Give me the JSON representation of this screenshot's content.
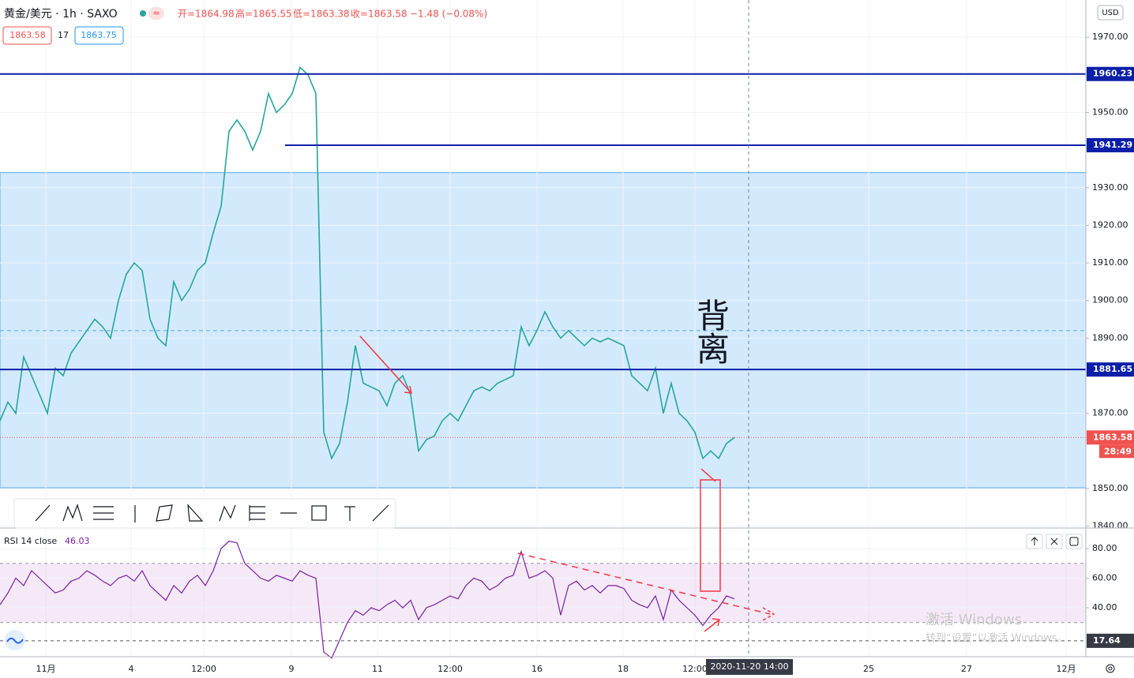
{
  "header": {
    "symbol": "黄金/美元 · 1h · SAXO",
    "ohlc": [
      "开=1864.98",
      "高=1865.55",
      "低=1863.38",
      "收=1863.58"
    ],
    "change": "−1.48 (−0.08%)",
    "bid": "1863.58",
    "spread": "17",
    "ask": "1863.75",
    "currency": "USD"
  },
  "annotation": "背离",
  "crosshair_time": "2020-11-20  14:00",
  "countdown": "28:49",
  "watermark": [
    "激活 Windows",
    "转到“设置”以激活 Windows。"
  ],
  "chart_data": [
    {
      "type": "line",
      "title": "黄金/美元",
      "color": "#26a69a",
      "series": [
        {
          "name": "黄金/美元",
          "color": "#26a69a",
          "values": [
            1868,
            1873,
            1870,
            1885,
            1880,
            1875,
            1870,
            1882,
            1880,
            1886,
            1889,
            1892,
            1895,
            1893,
            1890,
            1900,
            1907,
            1910,
            1908,
            1895,
            1890,
            1888,
            1905,
            1900,
            1903,
            1908,
            1910,
            1918,
            1925,
            1945,
            1948,
            1945,
            1940,
            1945,
            1955,
            1950,
            1952,
            1955,
            1962,
            1960,
            1955,
            1865,
            1858,
            1862,
            1873,
            1888,
            1878,
            1877,
            1876,
            1872,
            1878,
            1880,
            1875,
            1860,
            1863,
            1864,
            1868,
            1870,
            1868,
            1872,
            1876,
            1877,
            1876,
            1878,
            1879,
            1880,
            1893,
            1888,
            1892,
            1897,
            1893,
            1890,
            1892,
            1890,
            1888,
            1890,
            1889,
            1890,
            1889,
            1888,
            1880,
            1878,
            1876,
            1882,
            1870,
            1878,
            1870,
            1868,
            1865,
            1858,
            1860,
            1858,
            1862,
            1863.58
          ]
        }
      ],
      "levels": [
        {
          "value": 1960.23,
          "color": "#0b1fa8"
        },
        {
          "value": 1941.29,
          "color": "#0b1fa8"
        },
        {
          "value": 1881.65,
          "color": "#0b1fa8"
        },
        {
          "value": 1863.58,
          "color": "#ef5350"
        }
      ],
      "zone": [
        1850.2,
        1934
      ],
      "dashed_level": 1892,
      "xlim": [
        0,
        137.5
      ],
      "xticks": [
        {
          "value": 5.8,
          "label": "11月"
        },
        {
          "value": 16.6,
          "label": "4"
        },
        {
          "value": 25.8,
          "label": "12:00"
        },
        {
          "value": 36.9,
          "label": "9"
        },
        {
          "value": 47.8,
          "label": "11"
        },
        {
          "value": 57,
          "label": "12:00"
        },
        {
          "value": 68,
          "label": "16"
        },
        {
          "value": 78.9,
          "label": "18"
        },
        {
          "value": 88,
          "label": "12:00"
        },
        {
          "value": 110,
          "label": "25"
        },
        {
          "value": 122.4,
          "label": "27"
        },
        {
          "value": 135,
          "label": "12月"
        }
      ],
      "ylim": [
        1839.5,
        1979.9
      ],
      "yticks": [
        {
          "value": 1840,
          "label": "1840.00"
        },
        {
          "value": 1850,
          "label": "1850.00"
        },
        {
          "value": 1870,
          "label": "1870.00"
        },
        {
          "value": 1890,
          "label": "1890.00"
        },
        {
          "value": 1900,
          "label": "1900.00"
        },
        {
          "value": 1910,
          "label": "1910.00"
        },
        {
          "value": 1920,
          "label": "1920.00"
        },
        {
          "value": 1930,
          "label": "1930.00"
        },
        {
          "value": 1950,
          "label": "1950.00"
        },
        {
          "value": 1970,
          "label": "1970.00"
        }
      ],
      "grid": true
    },
    {
      "type": "line",
      "title": "RSI 14 close",
      "last": 46.03,
      "color": "#7b1fa2",
      "band": [
        30,
        70
      ],
      "marker": 17.64,
      "series": [
        {
          "name": "RSI 14 close",
          "color": "#7b1fa2",
          "values": [
            42,
            50,
            60,
            55,
            65,
            60,
            55,
            50,
            52,
            58,
            60,
            65,
            62,
            58,
            55,
            60,
            62,
            58,
            65,
            55,
            50,
            45,
            55,
            50,
            58,
            62,
            55,
            65,
            80,
            85,
            84,
            70,
            65,
            60,
            58,
            62,
            60,
            58,
            65,
            62,
            60,
            10,
            6,
            18,
            30,
            38,
            35,
            40,
            38,
            42,
            45,
            40,
            45,
            32,
            40,
            42,
            45,
            48,
            46,
            55,
            60,
            58,
            52,
            55,
            60,
            62,
            78,
            60,
            62,
            65,
            60,
            35,
            55,
            58,
            52,
            55,
            50,
            55,
            55,
            53,
            45,
            42,
            40,
            48,
            32,
            52,
            45,
            40,
            35,
            28,
            35,
            40,
            48,
            46.03
          ]
        }
      ],
      "xlim": [
        0,
        137.5
      ],
      "ylim": [
        6.9,
        92.3
      ],
      "yticks": [
        {
          "value": 40,
          "label": "40.00"
        },
        {
          "value": 60,
          "label": "60.00"
        },
        {
          "value": 80,
          "label": "80.00"
        }
      ],
      "grid": true
    }
  ]
}
